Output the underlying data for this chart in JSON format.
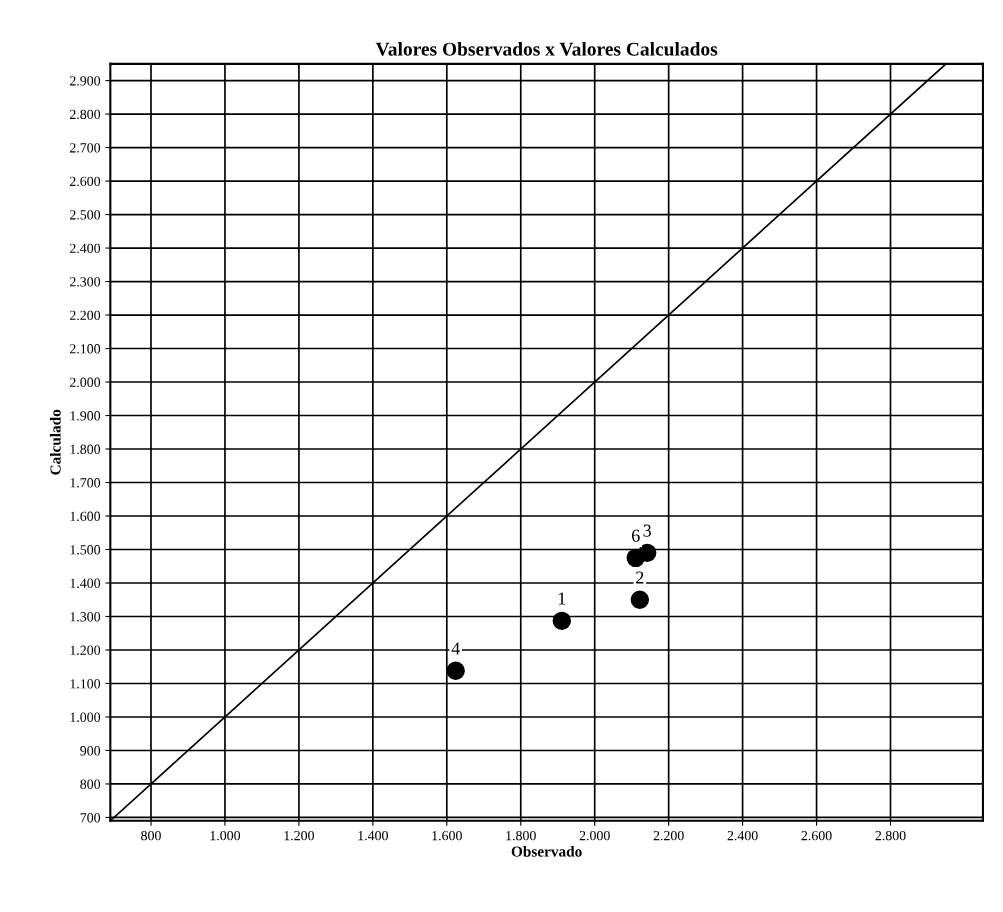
{
  "chart_data": {
    "type": "scatter",
    "title": "Valores Observados x Valores Calculados",
    "xlabel": "Observado",
    "ylabel": "Calculado",
    "series": [
      {
        "color": "#000000",
        "marker": "circle",
        "x": [
          1911,
          2122,
          2142,
          1624,
          2111
        ],
        "values": [
          1287,
          1350,
          1490,
          1138,
          1475
        ]
      },
      {
        "type": "line",
        "color": "#000000",
        "x": [
          690,
          2950
        ],
        "values": [
          690,
          2950
        ]
      }
    ],
    "annotations": [
      {
        "text": "1",
        "x": 1911,
        "y": 1287
      },
      {
        "text": "2",
        "x": 2122,
        "y": 1350
      },
      {
        "text": "3",
        "x": 2142,
        "y": 1490
      },
      {
        "text": "4",
        "x": 1624,
        "y": 1138
      },
      {
        "text": "6",
        "x": 2111,
        "y": 1475
      }
    ],
    "xlim": [
      690,
      3050
    ],
    "ylim": [
      690,
      2950
    ],
    "xticks": [
      {
        "value": 800,
        "label": "800"
      },
      {
        "value": 1000,
        "label": "1.000"
      },
      {
        "value": 1200,
        "label": "1.200"
      },
      {
        "value": 1400,
        "label": "1.400"
      },
      {
        "value": 1600,
        "label": "1.600"
      },
      {
        "value": 1800,
        "label": "1.800"
      },
      {
        "value": 2000,
        "label": "2.000"
      },
      {
        "value": 2200,
        "label": "2.200"
      },
      {
        "value": 2400,
        "label": "2.400"
      },
      {
        "value": 2600,
        "label": "2.600"
      },
      {
        "value": 2800,
        "label": "2.800"
      }
    ],
    "yticks": [
      700,
      800,
      900,
      {
        "value": 1000,
        "label": "1.000"
      },
      {
        "value": 1100,
        "label": "1.100"
      },
      {
        "value": 1200,
        "label": "1.200"
      },
      {
        "value": 1300,
        "label": "1.300"
      },
      {
        "value": 1400,
        "label": "1.400"
      },
      {
        "value": 1500,
        "label": "1.500"
      },
      {
        "value": 1600,
        "label": "1.600"
      },
      {
        "value": 1700,
        "label": "1.700"
      },
      {
        "value": 1800,
        "label": "1.800"
      },
      {
        "value": 1900,
        "label": "1.900"
      },
      {
        "value": 2000,
        "label": "2.000"
      },
      {
        "value": 2100,
        "label": "2.100"
      },
      {
        "value": 2200,
        "label": "2.200"
      },
      {
        "value": 2300,
        "label": "2.300"
      },
      {
        "value": 2400,
        "label": "2.400"
      },
      {
        "value": 2500,
        "label": "2.500"
      },
      {
        "value": 2600,
        "label": "2.600"
      },
      {
        "value": 2700,
        "label": "2.700"
      },
      {
        "value": 2800,
        "label": "2.800"
      },
      {
        "value": 2900,
        "label": "2.900"
      }
    ],
    "grid": true,
    "legend": false
  }
}
